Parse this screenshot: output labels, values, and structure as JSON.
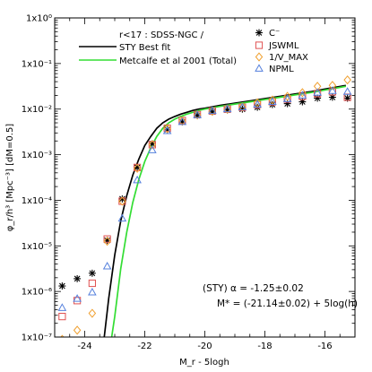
{
  "chart_data": {
    "type": "scatter",
    "title": "",
    "xlabel": "M_r - 5logh",
    "ylabel": "φ_r/h³ [Mpc⁻³] [dM=0.5]",
    "xlim": [
      -25.0,
      -15.0
    ],
    "ylim_log10": [
      -7,
      0
    ],
    "yscale": "log",
    "x_ticks": [
      -24,
      -22,
      -20,
      -18,
      -16
    ],
    "x_tick_labels": [
      "-24",
      "-22",
      "-20",
      "-18",
      "-16"
    ],
    "y_ticks_log10": [
      -7,
      -6,
      -5,
      -4,
      -3,
      -2,
      -1,
      0
    ],
    "y_tick_labels": [
      "1x10⁻⁷",
      "1x10⁻⁶",
      "1x10⁻⁵",
      "1x10⁻⁴",
      "1x10⁻³",
      "1x10⁻²",
      "1x10⁻¹",
      "1x10⁰"
    ],
    "sample_label": "r<17 : SDSS-NGC /",
    "annotation": {
      "line1": "(STY) α = -1.25±0.02",
      "line2": "M* = (-21.14±0.02) + 5log(h)"
    },
    "lines": [
      {
        "name": "STY Best fit",
        "color": "#000000",
        "x": [
          -23.35,
          -23.2,
          -23.0,
          -22.8,
          -22.6,
          -22.4,
          -22.2,
          -22.0,
          -21.8,
          -21.6,
          -21.4,
          -21.2,
          -21.0,
          -20.8,
          -20.6,
          -20.4,
          -20.2,
          -20.0,
          -19.5,
          -19.0,
          -18.5,
          -18.0,
          -17.5,
          -17.0,
          -16.5,
          -16.0,
          -15.3
        ],
        "log10_phi": [
          -7.0,
          -6.15,
          -5.2,
          -4.45,
          -3.9,
          -3.45,
          -3.1,
          -2.8,
          -2.6,
          -2.42,
          -2.3,
          -2.22,
          -2.16,
          -2.11,
          -2.07,
          -2.03,
          -2.0,
          -1.98,
          -1.92,
          -1.87,
          -1.82,
          -1.77,
          -1.72,
          -1.67,
          -1.62,
          -1.56,
          -1.48
        ]
      },
      {
        "name": "Metcalfe et al 2001 (Total)",
        "color": "#33dd33",
        "x": [
          -23.1,
          -23.0,
          -22.8,
          -22.6,
          -22.4,
          -22.2,
          -22.0,
          -21.8,
          -21.6,
          -21.4,
          -21.2,
          -21.0,
          -20.8,
          -20.6,
          -20.4,
          -20.2,
          -20.0,
          -19.5,
          -19.0,
          -18.5,
          -18.0,
          -17.5,
          -17.0,
          -16.5,
          -16.0,
          -15.3
        ],
        "log10_phi": [
          -7.0,
          -6.55,
          -5.5,
          -4.7,
          -4.05,
          -3.55,
          -3.15,
          -2.85,
          -2.6,
          -2.42,
          -2.3,
          -2.22,
          -2.16,
          -2.11,
          -2.07,
          -2.03,
          -2.0,
          -1.94,
          -1.89,
          -1.84,
          -1.79,
          -1.74,
          -1.69,
          -1.64,
          -1.58,
          -1.5
        ]
      }
    ],
    "series": [
      {
        "name": "C⁻",
        "marker": "asterisk",
        "color": "#000000",
        "x": [
          -24.75,
          -24.25,
          -23.75,
          -23.25,
          -22.75,
          -22.25,
          -21.75,
          -21.25,
          -20.75,
          -20.25,
          -19.75,
          -19.25,
          -18.75,
          -18.25,
          -17.75,
          -17.25,
          -16.75,
          -16.25,
          -15.75,
          -15.25
        ],
        "log10_phi": [
          -5.88,
          -5.72,
          -5.6,
          -4.88,
          -3.97,
          -3.28,
          -2.76,
          -2.45,
          -2.28,
          -2.14,
          -2.06,
          -2.02,
          -2.0,
          -1.96,
          -1.9,
          -1.88,
          -1.84,
          -1.76,
          -1.74,
          -1.76
        ]
      },
      {
        "name": "JSWML",
        "marker": "square",
        "color": "#e05050",
        "x": [
          -24.75,
          -24.25,
          -23.75,
          -23.25,
          -22.75,
          -22.25,
          -21.75,
          -21.25,
          -20.75,
          -20.25,
          -19.75,
          -19.25,
          -18.75,
          -18.25,
          -17.75,
          -17.25,
          -16.75,
          -16.25,
          -15.75,
          -15.25
        ],
        "log10_phi": [
          -6.55,
          -6.2,
          -5.82,
          -4.85,
          -4.02,
          -3.28,
          -2.78,
          -2.42,
          -2.25,
          -2.12,
          -2.04,
          -2.0,
          -1.96,
          -1.9,
          -1.84,
          -1.78,
          -1.72,
          -1.66,
          -1.62,
          -1.74
        ]
      },
      {
        "name": "1/V_MAX",
        "marker": "diamond",
        "color": "#f0a030",
        "x": [
          -24.75,
          -24.25,
          -23.75,
          -23.25,
          -22.75,
          -22.25,
          -21.75,
          -21.25,
          -20.75,
          -20.25,
          -19.75,
          -19.25,
          -18.75,
          -18.25,
          -17.75,
          -17.25,
          -16.75,
          -16.25,
          -15.75,
          -15.25
        ],
        "log10_phi": [
          -7.05,
          -6.85,
          -6.48,
          -4.9,
          -4.02,
          -3.3,
          -2.78,
          -2.43,
          -2.26,
          -2.13,
          -2.05,
          -2.0,
          -1.95,
          -1.86,
          -1.8,
          -1.72,
          -1.64,
          -1.5,
          -1.48,
          -1.36
        ]
      },
      {
        "name": "NPML",
        "marker": "triangle",
        "color": "#5580dd",
        "x": [
          -24.75,
          -24.25,
          -23.75,
          -23.25,
          -22.75,
          -22.25,
          -21.75,
          -21.25,
          -20.75,
          -20.25,
          -19.75,
          -19.25,
          -18.75,
          -18.25,
          -17.75,
          -17.25,
          -16.75,
          -16.25,
          -15.75,
          -15.25
        ],
        "log10_phi": [
          -6.36,
          -6.16,
          -6.02,
          -5.45,
          -4.4,
          -3.56,
          -2.9,
          -2.48,
          -2.28,
          -2.13,
          -2.04,
          -2.0,
          -1.96,
          -1.9,
          -1.84,
          -1.78,
          -1.7,
          -1.64,
          -1.6,
          -1.62
        ]
      }
    ],
    "legend_placement": "top-left (lines), top-right (markers)"
  }
}
